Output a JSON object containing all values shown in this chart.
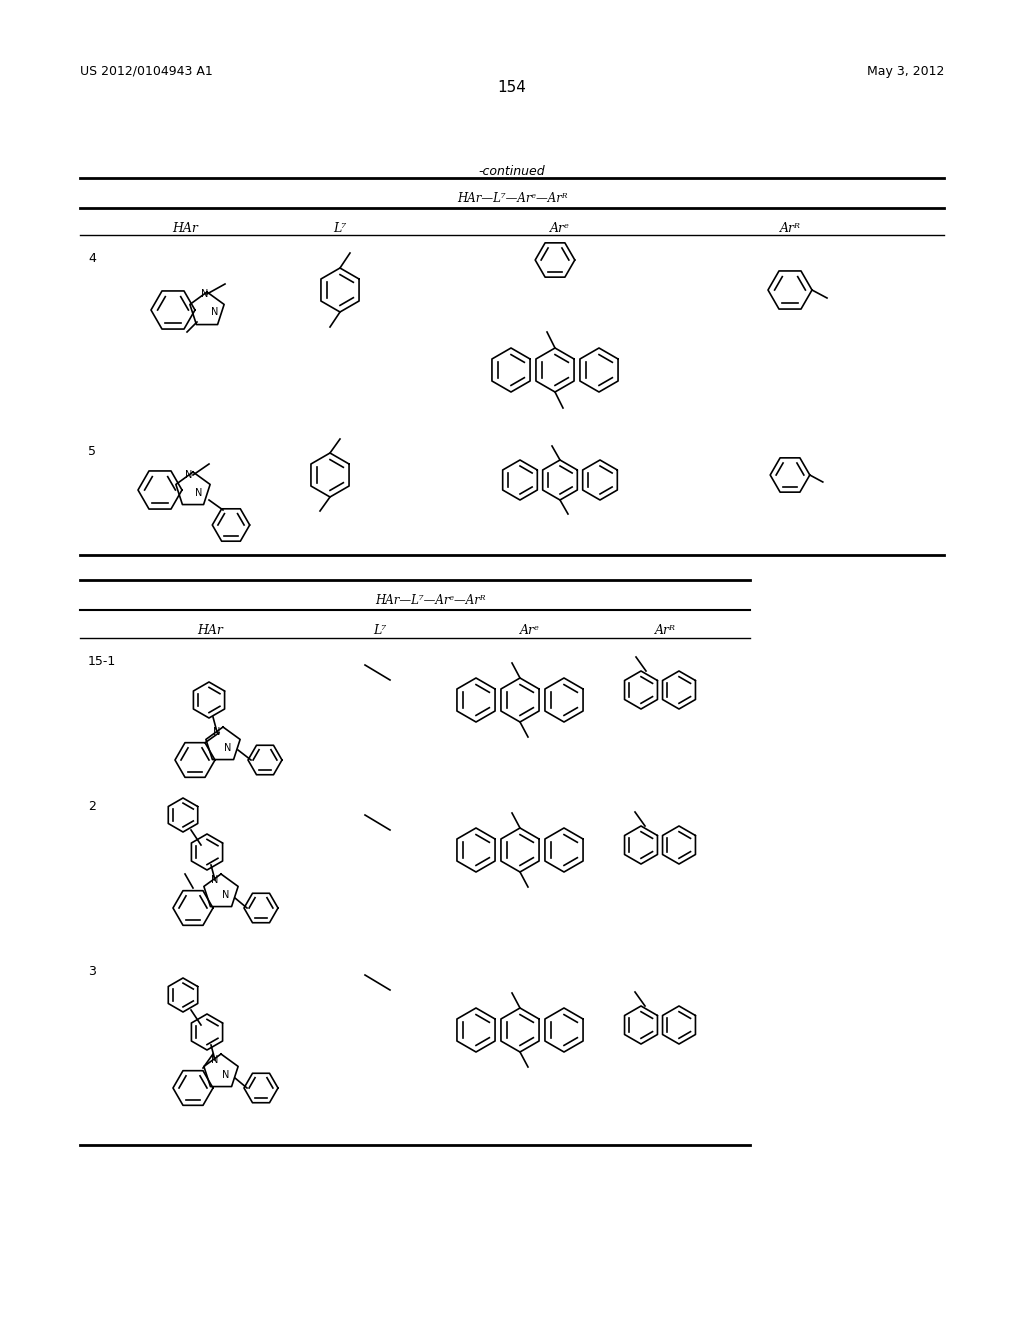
{
  "page_num": "154",
  "patent_left": "US 2012/0104943 A1",
  "patent_right": "May 3, 2012",
  "bg_color": "#ffffff",
  "text_color": "#000000",
  "continued_label": "-continued",
  "table1_formula": "HAr—L⁷—Arᵉ—Arᴿ",
  "table1_headers": [
    "HAr",
    "L⁷",
    "Arᵉ",
    "Arᴿ"
  ],
  "table1_rows": [
    "4",
    "5"
  ],
  "table2_formula": "HAr—L⁷—Arᵉ—Arᴿ",
  "table2_headers": [
    "HAr",
    "L⁷",
    "Arᵉ",
    "Arᴿ"
  ],
  "table2_rows": [
    "15-1",
    "2",
    "3"
  ]
}
